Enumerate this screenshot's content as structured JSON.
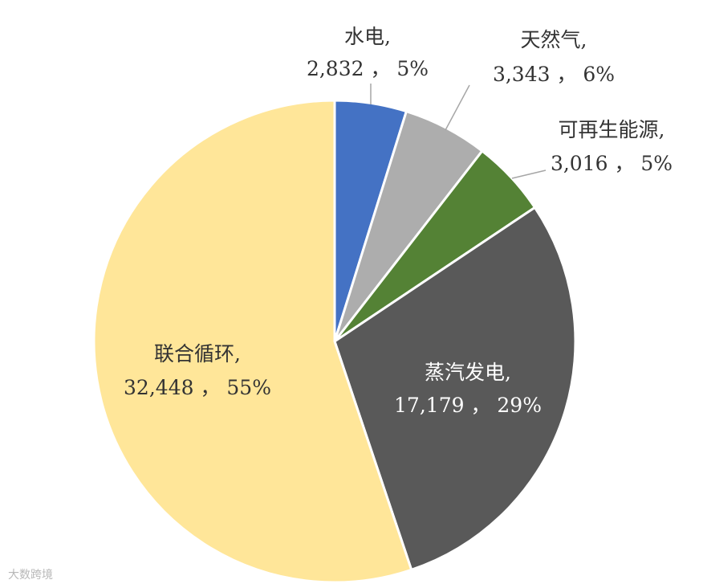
{
  "chart_data": {
    "type": "pie",
    "slices": [
      {
        "name": "水电",
        "value": 2832,
        "value_label": "2,832",
        "pct_label": "5%",
        "color": "#4472C4"
      },
      {
        "name": "天然气",
        "value": 3343,
        "value_label": "3,343",
        "pct_label": "6%",
        "color": "#ADADAD"
      },
      {
        "name": "可再生能源",
        "value": 3016,
        "value_label": "3,016",
        "pct_label": "5%",
        "color": "#548235"
      },
      {
        "name": "蒸汽发电",
        "value": 17179,
        "value_label": "17,179",
        "pct_label": "29%",
        "color": "#595959"
      },
      {
        "name": "联合循环",
        "value": 32448,
        "value_label": "32,448",
        "pct_label": "55%",
        "color": "#FFE699"
      }
    ],
    "start_angle": "12 o'clock",
    "direction": "clockwise",
    "legend": "none"
  },
  "watermark": "大数跨境"
}
